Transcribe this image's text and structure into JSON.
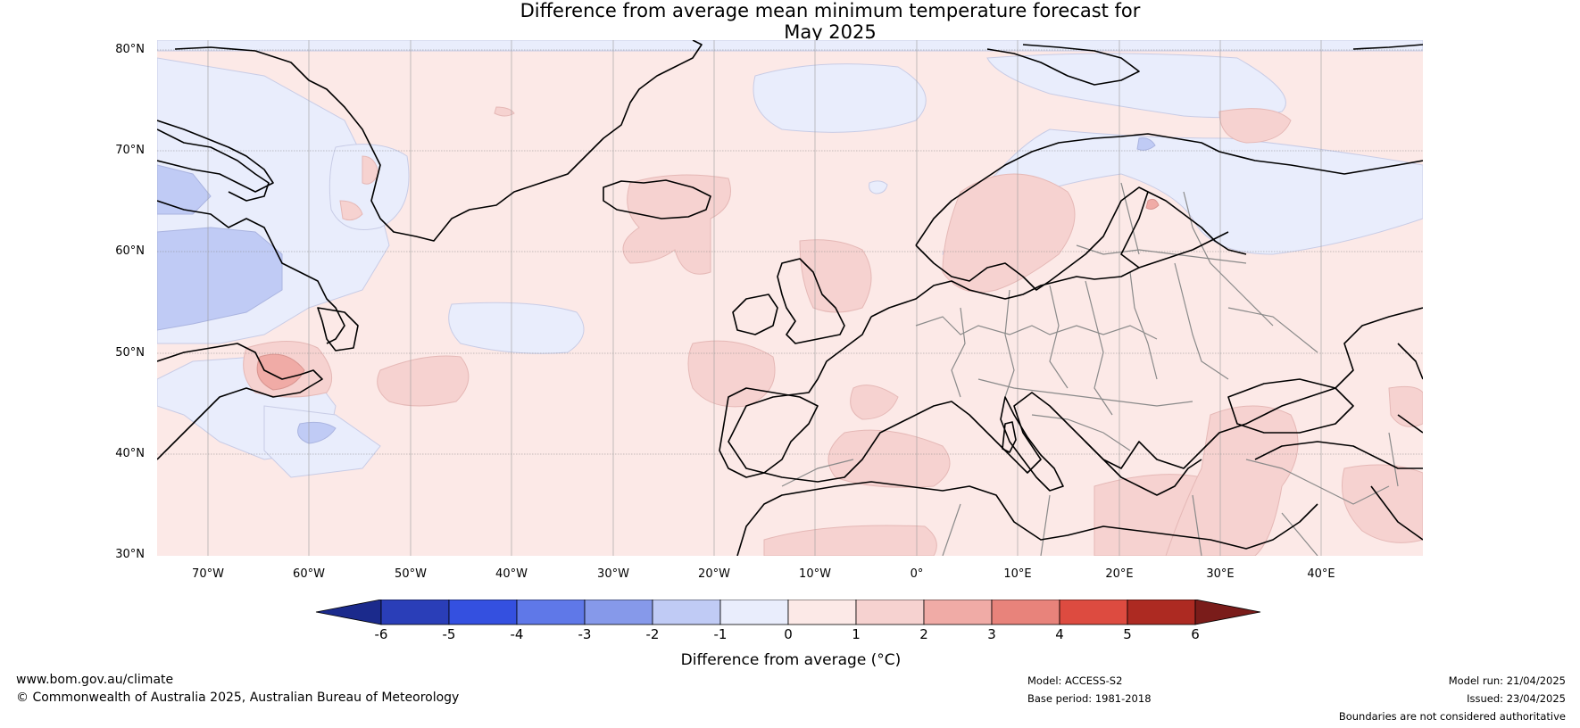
{
  "title": {
    "line1": "Difference from average mean minimum temperature forecast for",
    "line2": "May 2025"
  },
  "map": {
    "lat_labels": [
      "80°N",
      "70°N",
      "60°N",
      "50°N",
      "40°N",
      "30°N"
    ],
    "lon_labels": [
      "70°W",
      "60°W",
      "50°W",
      "40°W",
      "30°W",
      "20°W",
      "10°W",
      "0°",
      "10°E",
      "20°E",
      "30°E",
      "40°E"
    ],
    "ocean_color": "#fce9e7",
    "land_outline_color": "#000000",
    "border_color": "#888888"
  },
  "colorbar": {
    "label": "Difference from average (°C)",
    "ticks": [
      "-6",
      "-5",
      "-4",
      "-3",
      "-2",
      "-1",
      "0",
      "1",
      "2",
      "3",
      "4",
      "5",
      "6"
    ],
    "colors": [
      "#1b2a8c",
      "#2a3eb8",
      "#3450e0",
      "#5f78e8",
      "#8699ea",
      "#c0cbf5",
      "#e9edfc",
      "#fce9e7",
      "#f6d2d0",
      "#f0aba6",
      "#e8837b",
      "#dd4b40",
      "#ad2a22",
      "#7a1c1a"
    ]
  },
  "footer": {
    "url": "www.bom.gov.au/climate",
    "copyright": "© Commonwealth of Australia 2025, Australian Bureau of Meteorology",
    "model": "Model: ACCESS-S2",
    "base_period": "Base period: 1981-2018",
    "model_run": "Model run: 21/04/2025",
    "issued": "Issued: 23/04/2025",
    "disclaimer": "Boundaries are not considered authoritative"
  }
}
